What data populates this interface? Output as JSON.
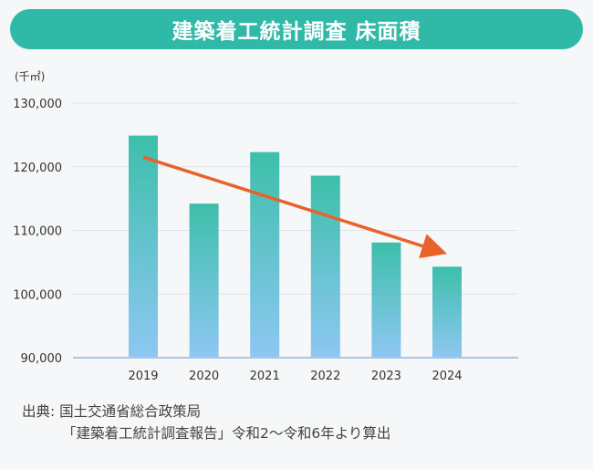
{
  "title": "建築着工統計調査 床面積",
  "source": {
    "line1": "出典: 国土交通省総合政策局",
    "line2": "「建築着工統計調査報告」令和2～令和6年より算出"
  },
  "colors": {
    "title_bg": "#2fb9a6",
    "bar_top": "#3dbfaa",
    "bar_bottom": "#8ec7f3",
    "trend_arrow": "#e8622a",
    "grid": "#dfe3e8"
  },
  "chart_data": {
    "type": "bar",
    "unit_label": "(千㎡)",
    "categories": [
      "2019",
      "2020",
      "2021",
      "2022",
      "2023",
      "2024"
    ],
    "values": [
      124900,
      114200,
      122300,
      118600,
      108100,
      104300
    ],
    "ylim": [
      90000,
      130000
    ],
    "yticks": [
      "90,000",
      "100,000",
      "110,000",
      "120,000",
      "130,000"
    ],
    "ytick_values": [
      90000,
      100000,
      110000,
      120000,
      130000
    ],
    "grid": true,
    "trend_arrow": {
      "from_category": "2019",
      "to_category": "2024",
      "from_value": 121500,
      "to_value": 106200
    }
  }
}
